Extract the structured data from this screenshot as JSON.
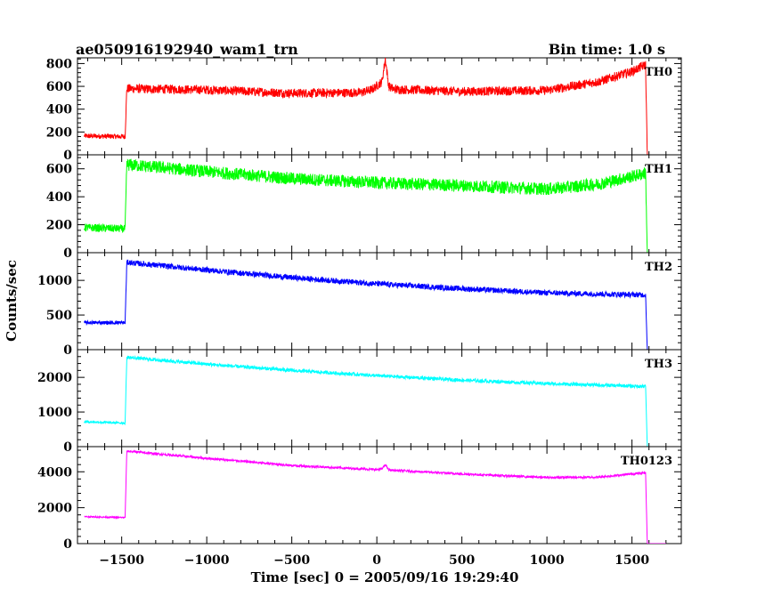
{
  "header": {
    "left_title": "ae050916192940_wam1_trn",
    "right_title": "Bin time: 1.0 s"
  },
  "chart_data": {
    "type": "line",
    "xlabel": "Time [sec] 0 = 2005/09/16 19:29:40",
    "ylabel": "Counts/sec",
    "xlim": [
      -1760,
      1790
    ],
    "x_ticks": [
      -1500,
      -1000,
      -500,
      0,
      500,
      1000,
      1500
    ],
    "x_tick_labels": [
      "−1500",
      "−1000",
      "−500",
      "0",
      "500",
      "1000",
      "1500"
    ],
    "grid": false,
    "panels": [
      {
        "name": "TH0",
        "color": "#ff0000",
        "ylim": [
          0,
          850
        ],
        "y_ticks": [
          0,
          200,
          400,
          600,
          800
        ],
        "points": [
          [
            -1720,
            165
          ],
          [
            -1480,
            160
          ],
          [
            -1470,
            580
          ],
          [
            -1000,
            570
          ],
          [
            -500,
            540
          ],
          [
            -100,
            545
          ],
          [
            -30,
            570
          ],
          [
            30,
            640
          ],
          [
            50,
            840
          ],
          [
            70,
            600
          ],
          [
            100,
            575
          ],
          [
            500,
            555
          ],
          [
            1000,
            565
          ],
          [
            1300,
            640
          ],
          [
            1500,
            730
          ],
          [
            1580,
            790
          ],
          [
            1590,
            0
          ],
          [
            1700,
            0
          ]
        ],
        "noise": 40
      },
      {
        "name": "TH1",
        "color": "#00ff00",
        "ylim": [
          0,
          700
        ],
        "y_ticks": [
          0,
          200,
          400,
          600
        ],
        "points": [
          [
            -1720,
            180
          ],
          [
            -1480,
            170
          ],
          [
            -1470,
            630
          ],
          [
            -1000,
            580
          ],
          [
            -500,
            530
          ],
          [
            0,
            500
          ],
          [
            500,
            480
          ],
          [
            1000,
            455
          ],
          [
            1300,
            490
          ],
          [
            1500,
            545
          ],
          [
            1580,
            570
          ],
          [
            1590,
            0
          ],
          [
            1700,
            0
          ]
        ],
        "noise": 45
      },
      {
        "name": "TH2",
        "color": "#0000ff",
        "ylim": [
          0,
          1400
        ],
        "y_ticks": [
          0,
          500,
          1000
        ],
        "points": [
          [
            -1720,
            390
          ],
          [
            -1480,
            390
          ],
          [
            -1470,
            1260
          ],
          [
            -1000,
            1150
          ],
          [
            -500,
            1040
          ],
          [
            0,
            950
          ],
          [
            500,
            880
          ],
          [
            1000,
            820
          ],
          [
            1580,
            790
          ],
          [
            1590,
            0
          ],
          [
            1700,
            0
          ]
        ],
        "noise": 40
      },
      {
        "name": "TH3",
        "color": "#00ffff",
        "ylim": [
          0,
          2800
        ],
        "y_ticks": [
          0,
          1000,
          2000
        ],
        "points": [
          [
            -1720,
            720
          ],
          [
            -1480,
            680
          ],
          [
            -1470,
            2580
          ],
          [
            -1000,
            2380
          ],
          [
            -500,
            2200
          ],
          [
            0,
            2050
          ],
          [
            500,
            1920
          ],
          [
            1000,
            1820
          ],
          [
            1580,
            1740
          ],
          [
            1590,
            0
          ],
          [
            1700,
            0
          ]
        ],
        "noise": 50
      },
      {
        "name": "TH0123",
        "color": "#ff00ff",
        "ylim": [
          0,
          5400
        ],
        "y_ticks": [
          0,
          2000,
          4000
        ],
        "points": [
          [
            -1720,
            1500
          ],
          [
            -1480,
            1450
          ],
          [
            -1470,
            5150
          ],
          [
            -1000,
            4750
          ],
          [
            -500,
            4350
          ],
          [
            0,
            4120
          ],
          [
            30,
            4150
          ],
          [
            50,
            4400
          ],
          [
            70,
            4100
          ],
          [
            500,
            3880
          ],
          [
            1000,
            3680
          ],
          [
            1300,
            3700
          ],
          [
            1580,
            3950
          ],
          [
            1590,
            0
          ],
          [
            1700,
            0
          ]
        ],
        "noise": 60
      }
    ]
  }
}
